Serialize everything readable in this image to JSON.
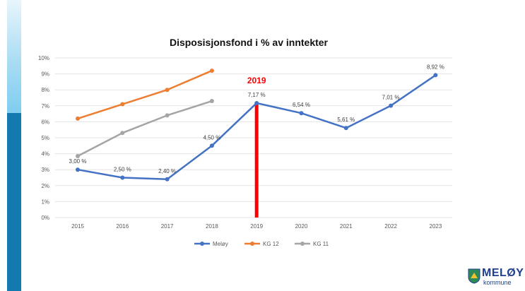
{
  "chart_data": {
    "type": "line",
    "title": "Disposisjonsfond i % av inntekter",
    "categories": [
      "2015",
      "2016",
      "2017",
      "2018",
      "2019",
      "2020",
      "2021",
      "2022",
      "2023"
    ],
    "yticks": [
      "0%",
      "1%",
      "2%",
      "3%",
      "4%",
      "5%",
      "6%",
      "7%",
      "8%",
      "9%",
      "10%"
    ],
    "ylim": [
      0,
      10
    ],
    "series": [
      {
        "name": "Meløy",
        "color": "#4472c4",
        "values": [
          3.0,
          2.5,
          2.4,
          4.5,
          7.17,
          6.54,
          5.61,
          7.01,
          8.92
        ],
        "labels": [
          "3,00 %",
          "2,50 %",
          "2,40 %",
          "4,50 %",
          "7,17 %",
          "6,54 %",
          "5,61 %",
          "7,01 %",
          "8,92 %"
        ]
      },
      {
        "name": "KG 12",
        "color": "#ed7d31",
        "values": [
          6.2,
          7.1,
          8.0,
          9.2,
          null,
          null,
          null,
          null,
          null
        ]
      },
      {
        "name": "KG 11",
        "color": "#a5a5a5",
        "values": [
          3.85,
          5.3,
          6.4,
          7.3,
          null,
          null,
          null,
          null,
          null
        ]
      }
    ],
    "highlight": {
      "category": "2019",
      "label": "2019",
      "color": "#ff0000"
    },
    "grid": true,
    "legend_position": "bottom"
  },
  "logo": {
    "name": "MELØY",
    "sub": "kommune"
  }
}
